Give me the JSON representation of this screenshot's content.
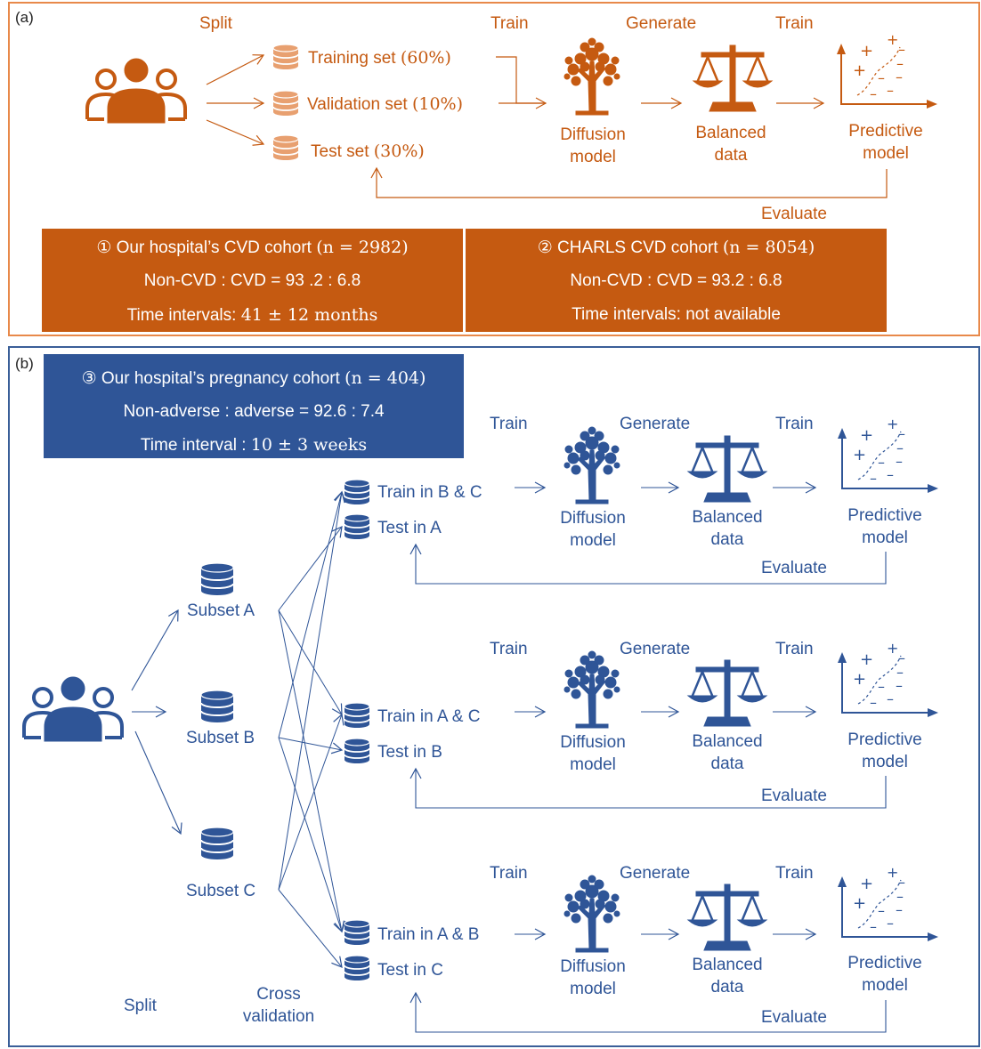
{
  "panel_a": {
    "label": "(a)",
    "split_label": "Split",
    "sets": [
      "Training set",
      "Validation set",
      "Test set"
    ],
    "set_percents": [
      "(60%)",
      "(10%)",
      "(30%)"
    ],
    "train_label_1": "Train",
    "generate_label": "Generate",
    "train_label_2": "Train",
    "diffusion_line1": "Diffusion",
    "diffusion_line2": "model",
    "balanced_line1": "Balanced",
    "balanced_line2": "data",
    "predictive_line1": "Predictive",
    "predictive_line2": "model",
    "evaluate_label": "Evaluate",
    "cohort1": {
      "title": "① Our hospital’s CVD cohort",
      "n": "(n = 2982)",
      "ratio": "Non-CVD : CVD = 93 .2 : 6.8",
      "interval_label": "Time intervals:",
      "interval_value": "41 ± 12 months"
    },
    "cohort2": {
      "title": "② CHARLS CVD cohort",
      "n": "(n = 8054)",
      "ratio": "Non-CVD : CVD = 93.2 : 6.8",
      "interval": "Time intervals: not available"
    }
  },
  "panel_b": {
    "label": "(b)",
    "cohort3": {
      "title": "③ Our hospital’s pregnancy cohort",
      "n": "(n = 404)",
      "ratio": "Non-adverse : adverse = 92.6 : 7.4",
      "interval_label": "Time interval :",
      "interval_value": "10 ± 3 weeks"
    },
    "subsets": [
      "Subset A",
      "Subset B",
      "Subset C"
    ],
    "split_label": "Split",
    "cross_line1": "Cross",
    "cross_line2": "validation",
    "rows": [
      {
        "train": "Train in B & C",
        "test": "Test in A"
      },
      {
        "train": "Train in A & C",
        "test": "Test in B"
      },
      {
        "train": "Train in A & B",
        "test": "Test in C"
      }
    ],
    "train_label_1": "Train",
    "generate_label": "Generate",
    "train_label_2": "Train",
    "diffusion_line1": "Diffusion",
    "diffusion_line2": "model",
    "balanced_line1": "Balanced",
    "balanced_line2": "data",
    "predictive_line1": "Predictive",
    "predictive_line2": "model",
    "evaluate_label": "Evaluate"
  },
  "colors": {
    "orange": "#c55a11",
    "orange_light": "#e8894a",
    "blue": "#2f5597",
    "blue_border": "#3a5f98"
  },
  "icons": [
    "people-group-icon",
    "database-icon",
    "tree-icon",
    "balance-scale-icon",
    "scatter-plot-icon"
  ]
}
